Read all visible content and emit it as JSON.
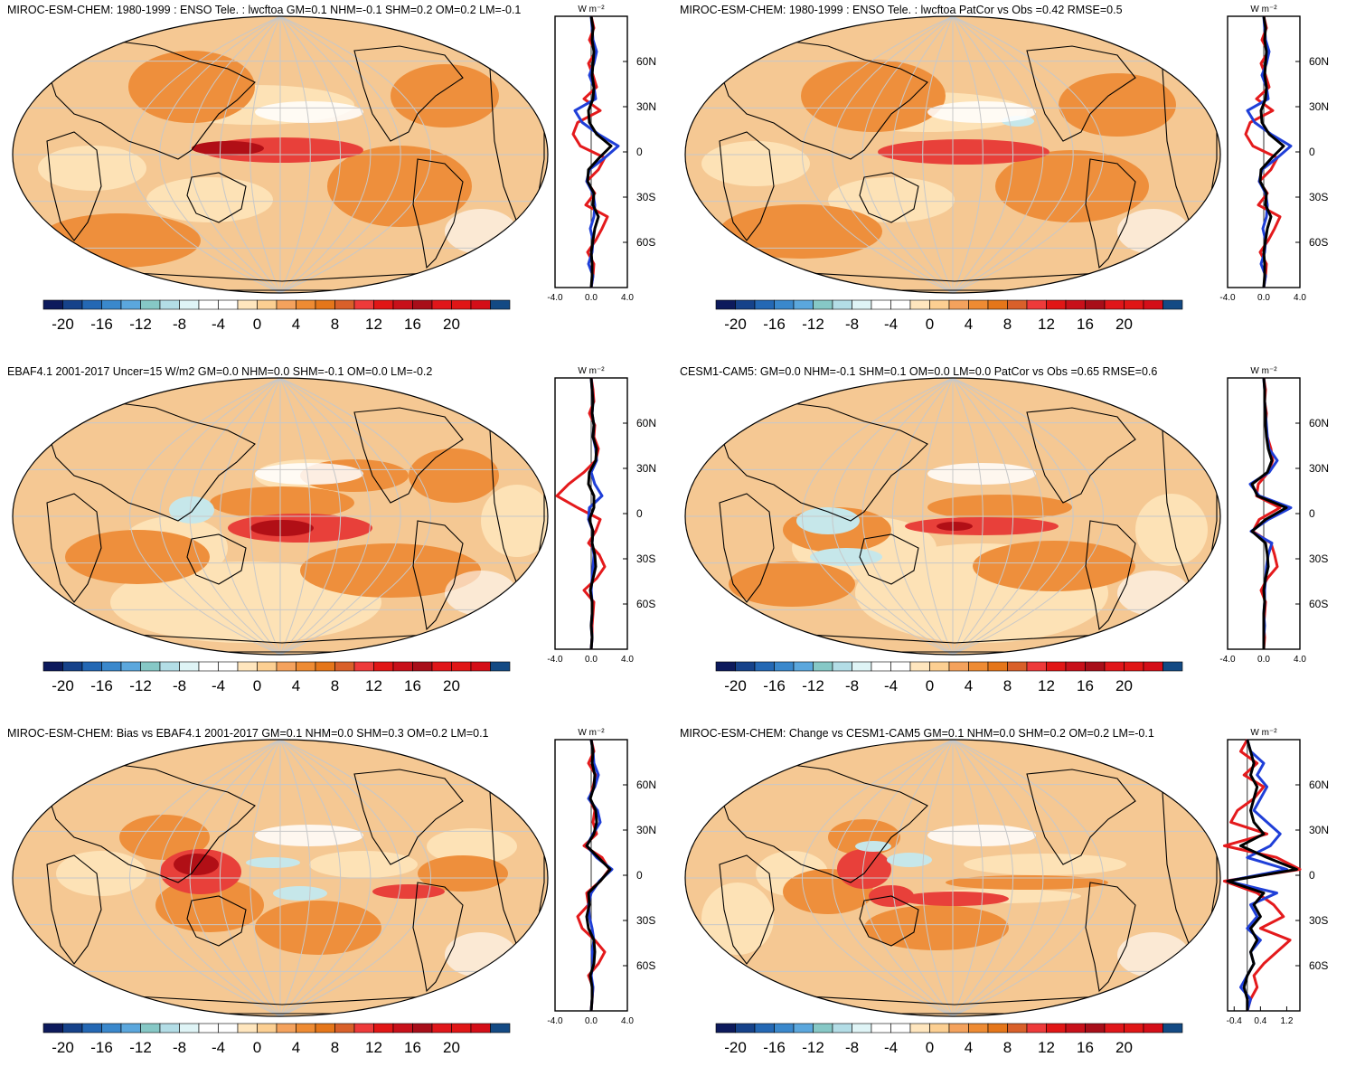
{
  "panels": [
    {
      "title": "MIROC-ESM-CHEM: 1980-1999 : ENSO Tele. : lwcftoa GM=0.1 NHM=-0.1 SHM=0.2 OM=0.2 LM=-0.1",
      "profile": {
        "x_ticks": [
          "-4.0",
          "0.0",
          "4.0"
        ],
        "x_range": [
          -4,
          4
        ],
        "units": "W m⁻²",
        "y_ticks": [
          "60N",
          "30N",
          "0",
          "30S",
          "60S"
        ],
        "lines": [
          {
            "color": "#e41a1c",
            "values": [
              0,
              0.3,
              -0.2,
              0.5,
              -0.3,
              0.2,
              0.6,
              -0.8,
              1.0,
              -1.5,
              -2.0,
              -1.2,
              1.5,
              0.8,
              -0.5,
              0.4,
              -0.6,
              1.8,
              1.2,
              0.5,
              -0.4,
              0.3,
              0.2,
              0
            ]
          },
          {
            "color": "#1f3fd8",
            "values": [
              0,
              0.1,
              0.2,
              0.6,
              0.3,
              -0.2,
              0.3,
              0.5,
              -1.8,
              -1.0,
              0.8,
              3.0,
              1.5,
              -0.2,
              -0.5,
              0.2,
              0.4,
              0.3,
              -0.1,
              0.2,
              0.1,
              -0.3,
              0.2,
              0
            ]
          },
          {
            "color": "#000000",
            "values": [
              0,
              0.2,
              0.1,
              0.3,
              0.2,
              0.1,
              0.3,
              0.2,
              -0.3,
              -0.2,
              0.6,
              2.2,
              0.9,
              -0.3,
              -0.4,
              0.3,
              0.2,
              0.8,
              0.4,
              0.2,
              0.0,
              0.1,
              0.1,
              0
            ]
          }
        ]
      }
    },
    {
      "title": "MIROC-ESM-CHEM: 1980-1999 : ENSO Tele. : lwcftoa PatCor vs Obs =0.42 RMSE=0.5",
      "profile": {
        "x_ticks": [
          "-4.0",
          "0.0",
          "4.0"
        ],
        "x_range": [
          -4,
          4
        ],
        "units": "W m⁻²",
        "y_ticks": [
          "60N",
          "30N",
          "0",
          "30S",
          "60S"
        ],
        "lines": [
          {
            "color": "#e41a1c",
            "values": [
              0,
              0.3,
              -0.2,
              0.5,
              -0.3,
              0.2,
              0.6,
              -0.8,
              1.0,
              -1.5,
              -2.0,
              -1.2,
              1.5,
              0.8,
              -0.5,
              0.4,
              -0.6,
              1.8,
              1.2,
              0.5,
              -0.4,
              0.3,
              0.2,
              0
            ]
          },
          {
            "color": "#1f3fd8",
            "values": [
              0,
              0.1,
              0.2,
              0.6,
              0.3,
              -0.2,
              0.3,
              0.5,
              -1.8,
              -1.0,
              0.8,
              3.0,
              1.5,
              -0.2,
              -0.5,
              0.2,
              0.4,
              0.3,
              -0.1,
              0.2,
              0.1,
              -0.3,
              0.2,
              0
            ]
          },
          {
            "color": "#000000",
            "values": [
              0,
              0.2,
              0.1,
              0.3,
              0.2,
              0.1,
              0.3,
              0.2,
              -0.3,
              -0.2,
              0.6,
              2.2,
              0.9,
              -0.3,
              -0.4,
              0.3,
              0.2,
              0.8,
              0.4,
              0.2,
              0.0,
              0.1,
              0.1,
              0
            ]
          }
        ]
      }
    },
    {
      "title": "EBAF4.1 2001-2017 Uncer=15 W/m2 GM=0.0 NHM=0.0 SHM=-0.1 OM=0.0 LM=-0.2",
      "profile": {
        "x_ticks": [
          "-4.0",
          "0.0",
          "4.0"
        ],
        "x_range": [
          -4,
          4
        ],
        "units": "W m⁻²",
        "y_ticks": [
          "60N",
          "30N",
          "0",
          "30S",
          "60S"
        ],
        "lines": [
          {
            "color": "#e41a1c",
            "values": [
              0,
              0.2,
              0.3,
              -0.2,
              0.4,
              0.3,
              0.8,
              0.5,
              -0.8,
              -2.5,
              -3.8,
              -1.5,
              1.0,
              0.5,
              -0.3,
              0.9,
              1.5,
              0.6,
              -0.8,
              0.3,
              0.2,
              0.1,
              0.1,
              0
            ]
          },
          {
            "color": "#1f3fd8",
            "values": [
              0,
              0.1,
              0.2,
              0.1,
              0.3,
              0.2,
              0.5,
              0.6,
              0.0,
              0.4,
              1.2,
              -0.2,
              -0.3,
              0.2,
              0.1,
              0.3,
              0.2,
              0.1,
              0.0,
              0.1,
              0.1,
              0.0,
              0.1,
              0
            ]
          },
          {
            "color": "#000000",
            "values": [
              0,
              0.1,
              0.2,
              0.1,
              0.3,
              0.2,
              0.6,
              0.5,
              -0.2,
              -0.3,
              0.3,
              0.3,
              -0.2,
              0.2,
              0.1,
              0.4,
              0.5,
              0.2,
              -0.1,
              0.1,
              0.1,
              0.0,
              0.1,
              0
            ]
          }
        ]
      }
    },
    {
      "title": "CESM1-CAM5: GM=0.0 NHM=-0.1 SHM=0.1 OM=0.0 LM=0.0 PatCor vs Obs =0.65 RMSE=0.6",
      "profile": {
        "x_ticks": [
          "-4.0",
          "0.0",
          "4.0"
        ],
        "x_range": [
          -4,
          4
        ],
        "units": "W m⁻²",
        "y_ticks": [
          "60N",
          "30N",
          "0",
          "30S",
          "60S"
        ],
        "lines": [
          {
            "color": "#e41a1c",
            "values": [
              0,
              0.2,
              0.1,
              0.3,
              0.2,
              0.4,
              0.8,
              1.0,
              0.5,
              -0.6,
              -0.8,
              1.8,
              -0.5,
              -1.2,
              0.8,
              1.2,
              1.5,
              0.4,
              -0.3,
              0.2,
              0.1,
              0.0,
              0.1,
              0
            ]
          },
          {
            "color": "#1f3fd8",
            "values": [
              0,
              0.1,
              0.1,
              0.2,
              0.3,
              0.4,
              0.6,
              1.5,
              0.6,
              -1.5,
              -0.5,
              3.0,
              0.5,
              -1.4,
              0.9,
              0.5,
              0.3,
              0.2,
              0.1,
              0.1,
              0.0,
              0.1,
              0.0,
              0
            ]
          },
          {
            "color": "#000000",
            "values": [
              0,
              0.1,
              0.1,
              0.2,
              0.2,
              0.3,
              0.5,
              0.9,
              0.4,
              -1.3,
              -0.7,
              2.5,
              0.2,
              -1.3,
              0.2,
              0.4,
              0.5,
              0.2,
              0.0,
              0.1,
              0.0,
              0.0,
              0.0,
              0
            ]
          }
        ]
      }
    },
    {
      "title": "MIROC-ESM-CHEM: Bias vs EBAF4.1 2001-2017 GM=0.1 NHM=0.0 SHM=0.3 OM=0.2 LM=0.1",
      "profile": {
        "x_ticks": [
          "-4.0",
          "0.0",
          "4.0"
        ],
        "x_range": [
          -4,
          4
        ],
        "units": "W m⁻²",
        "y_ticks": [
          "60N",
          "30N",
          "0",
          "30S",
          "60S"
        ],
        "lines": [
          {
            "color": "#e41a1c",
            "values": [
              0,
              0.3,
              -0.3,
              0.5,
              0.2,
              -0.2,
              0.4,
              0.2,
              0.6,
              -0.8,
              1.2,
              2.0,
              1.0,
              -0.5,
              -0.3,
              -1.5,
              -1.0,
              0.4,
              1.5,
              0.8,
              -0.3,
              0.2,
              0.1,
              0
            ]
          },
          {
            "color": "#1f3fd8",
            "values": [
              0,
              0.2,
              0.3,
              0.8,
              0.4,
              -0.3,
              0.7,
              1.0,
              0.2,
              -0.5,
              0.6,
              2.3,
              0.9,
              0.0,
              -0.3,
              -0.2,
              0.1,
              0.3,
              0.1,
              0.2,
              0.0,
              0.2,
              0.1,
              0
            ]
          },
          {
            "color": "#000000",
            "values": [
              0,
              0.2,
              0.1,
              0.4,
              0.3,
              -0.1,
              0.5,
              0.6,
              0.3,
              -0.5,
              0.8,
              2.1,
              1.0,
              -0.3,
              -0.2,
              -0.5,
              -0.3,
              0.3,
              0.4,
              0.3,
              -0.1,
              0.1,
              0.1,
              0
            ]
          }
        ]
      }
    },
    {
      "title": "MIROC-ESM-CHEM: Change vs CESM1-CAM5 GM=0.1 NHM=0.0 SHM=0.2 OM=0.2 LM=-0.1",
      "profile": {
        "x_ticks": [
          "-0.4",
          "0.4",
          "1.2"
        ],
        "x_range": [
          -0.6,
          1.6
        ],
        "units": "W m⁻²",
        "y_ticks": [
          "60N",
          "30N",
          "0",
          "30S",
          "60S"
        ],
        "lines": [
          {
            "color": "#e41a1c",
            "values": [
              0.0,
              -0.2,
              0.3,
              -0.1,
              0.5,
              0.2,
              -0.3,
              -0.5,
              0.6,
              -0.7,
              0.9,
              1.6,
              -0.7,
              0.3,
              0.8,
              1.1,
              0.4,
              1.3,
              0.9,
              0.5,
              0.2,
              0.3,
              0.1,
              0.0
            ]
          },
          {
            "color": "#1f3fd8",
            "values": [
              0.0,
              0.1,
              0.5,
              0.3,
              0.6,
              0.4,
              0.2,
              0.6,
              1.0,
              0.7,
              0.0,
              1.2,
              -0.6,
              0.9,
              0.1,
              0.3,
              0.0,
              0.4,
              0.1,
              0.2,
              0.0,
              -0.2,
              0.1,
              0.0
            ]
          },
          {
            "color": "#000000",
            "values": [
              0.0,
              0.1,
              0.2,
              0.1,
              0.3,
              0.2,
              0.1,
              0.2,
              0.5,
              -0.2,
              0.6,
              1.5,
              -0.6,
              0.5,
              0.2,
              0.4,
              0.1,
              0.3,
              0.1,
              0.2,
              0.0,
              -0.1,
              0.0,
              0.0
            ]
          }
        ]
      }
    }
  ],
  "colorbar": {
    "labels": [
      "-20",
      "-16",
      "-12",
      "-8",
      "-4",
      "0",
      "4",
      "8",
      "12",
      "16",
      "20"
    ],
    "colors": [
      "#0d1a5c",
      "#16428a",
      "#2468b4",
      "#3a88cc",
      "#5ba7dd",
      "#86c8c6",
      "#b3dde6",
      "#dff4f6",
      "#ffffff",
      "#ffffff",
      "#ffe6be",
      "#fccf92",
      "#f4a25d",
      "#ee8b33",
      "#e5761a",
      "#d9602a",
      "#ee3a3a",
      "#e11616",
      "#c8101a",
      "#a80e19",
      "#e0161a",
      "#e01616",
      "#d40e18",
      "#134a84"
    ]
  },
  "map_colors": {
    "ocean_base": "#f5c893",
    "land_line": "#000000",
    "grid": "#c8c8c8",
    "light": "#fde2b6",
    "mid": "#ee8f3c",
    "strong": "#e8403a",
    "max": "#b10f16",
    "neg": "#c6e7ea"
  }
}
